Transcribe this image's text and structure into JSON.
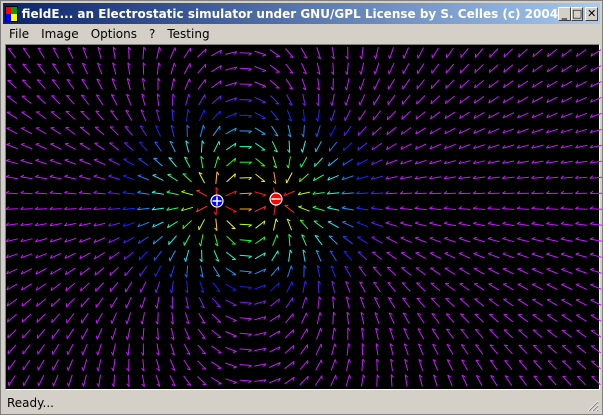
{
  "window": {
    "title": "fieldE... an Electrostatic simulator under GNU/GPL License by S. Celles (c) 2004",
    "icon": "app-icon",
    "buttons": {
      "minimize": "_",
      "maximize": "□",
      "close": "✕"
    }
  },
  "menu": {
    "items": [
      {
        "label": "File"
      },
      {
        "label": "Image"
      },
      {
        "label": "Options"
      },
      {
        "label": "?"
      },
      {
        "label": "Testing"
      }
    ]
  },
  "field": {
    "background": "#000000",
    "charges": [
      {
        "sign": "+",
        "color": "#0000ff"
      },
      {
        "sign": "-",
        "color": "#ff0000"
      }
    ]
  },
  "status": {
    "text": "Ready..."
  }
}
